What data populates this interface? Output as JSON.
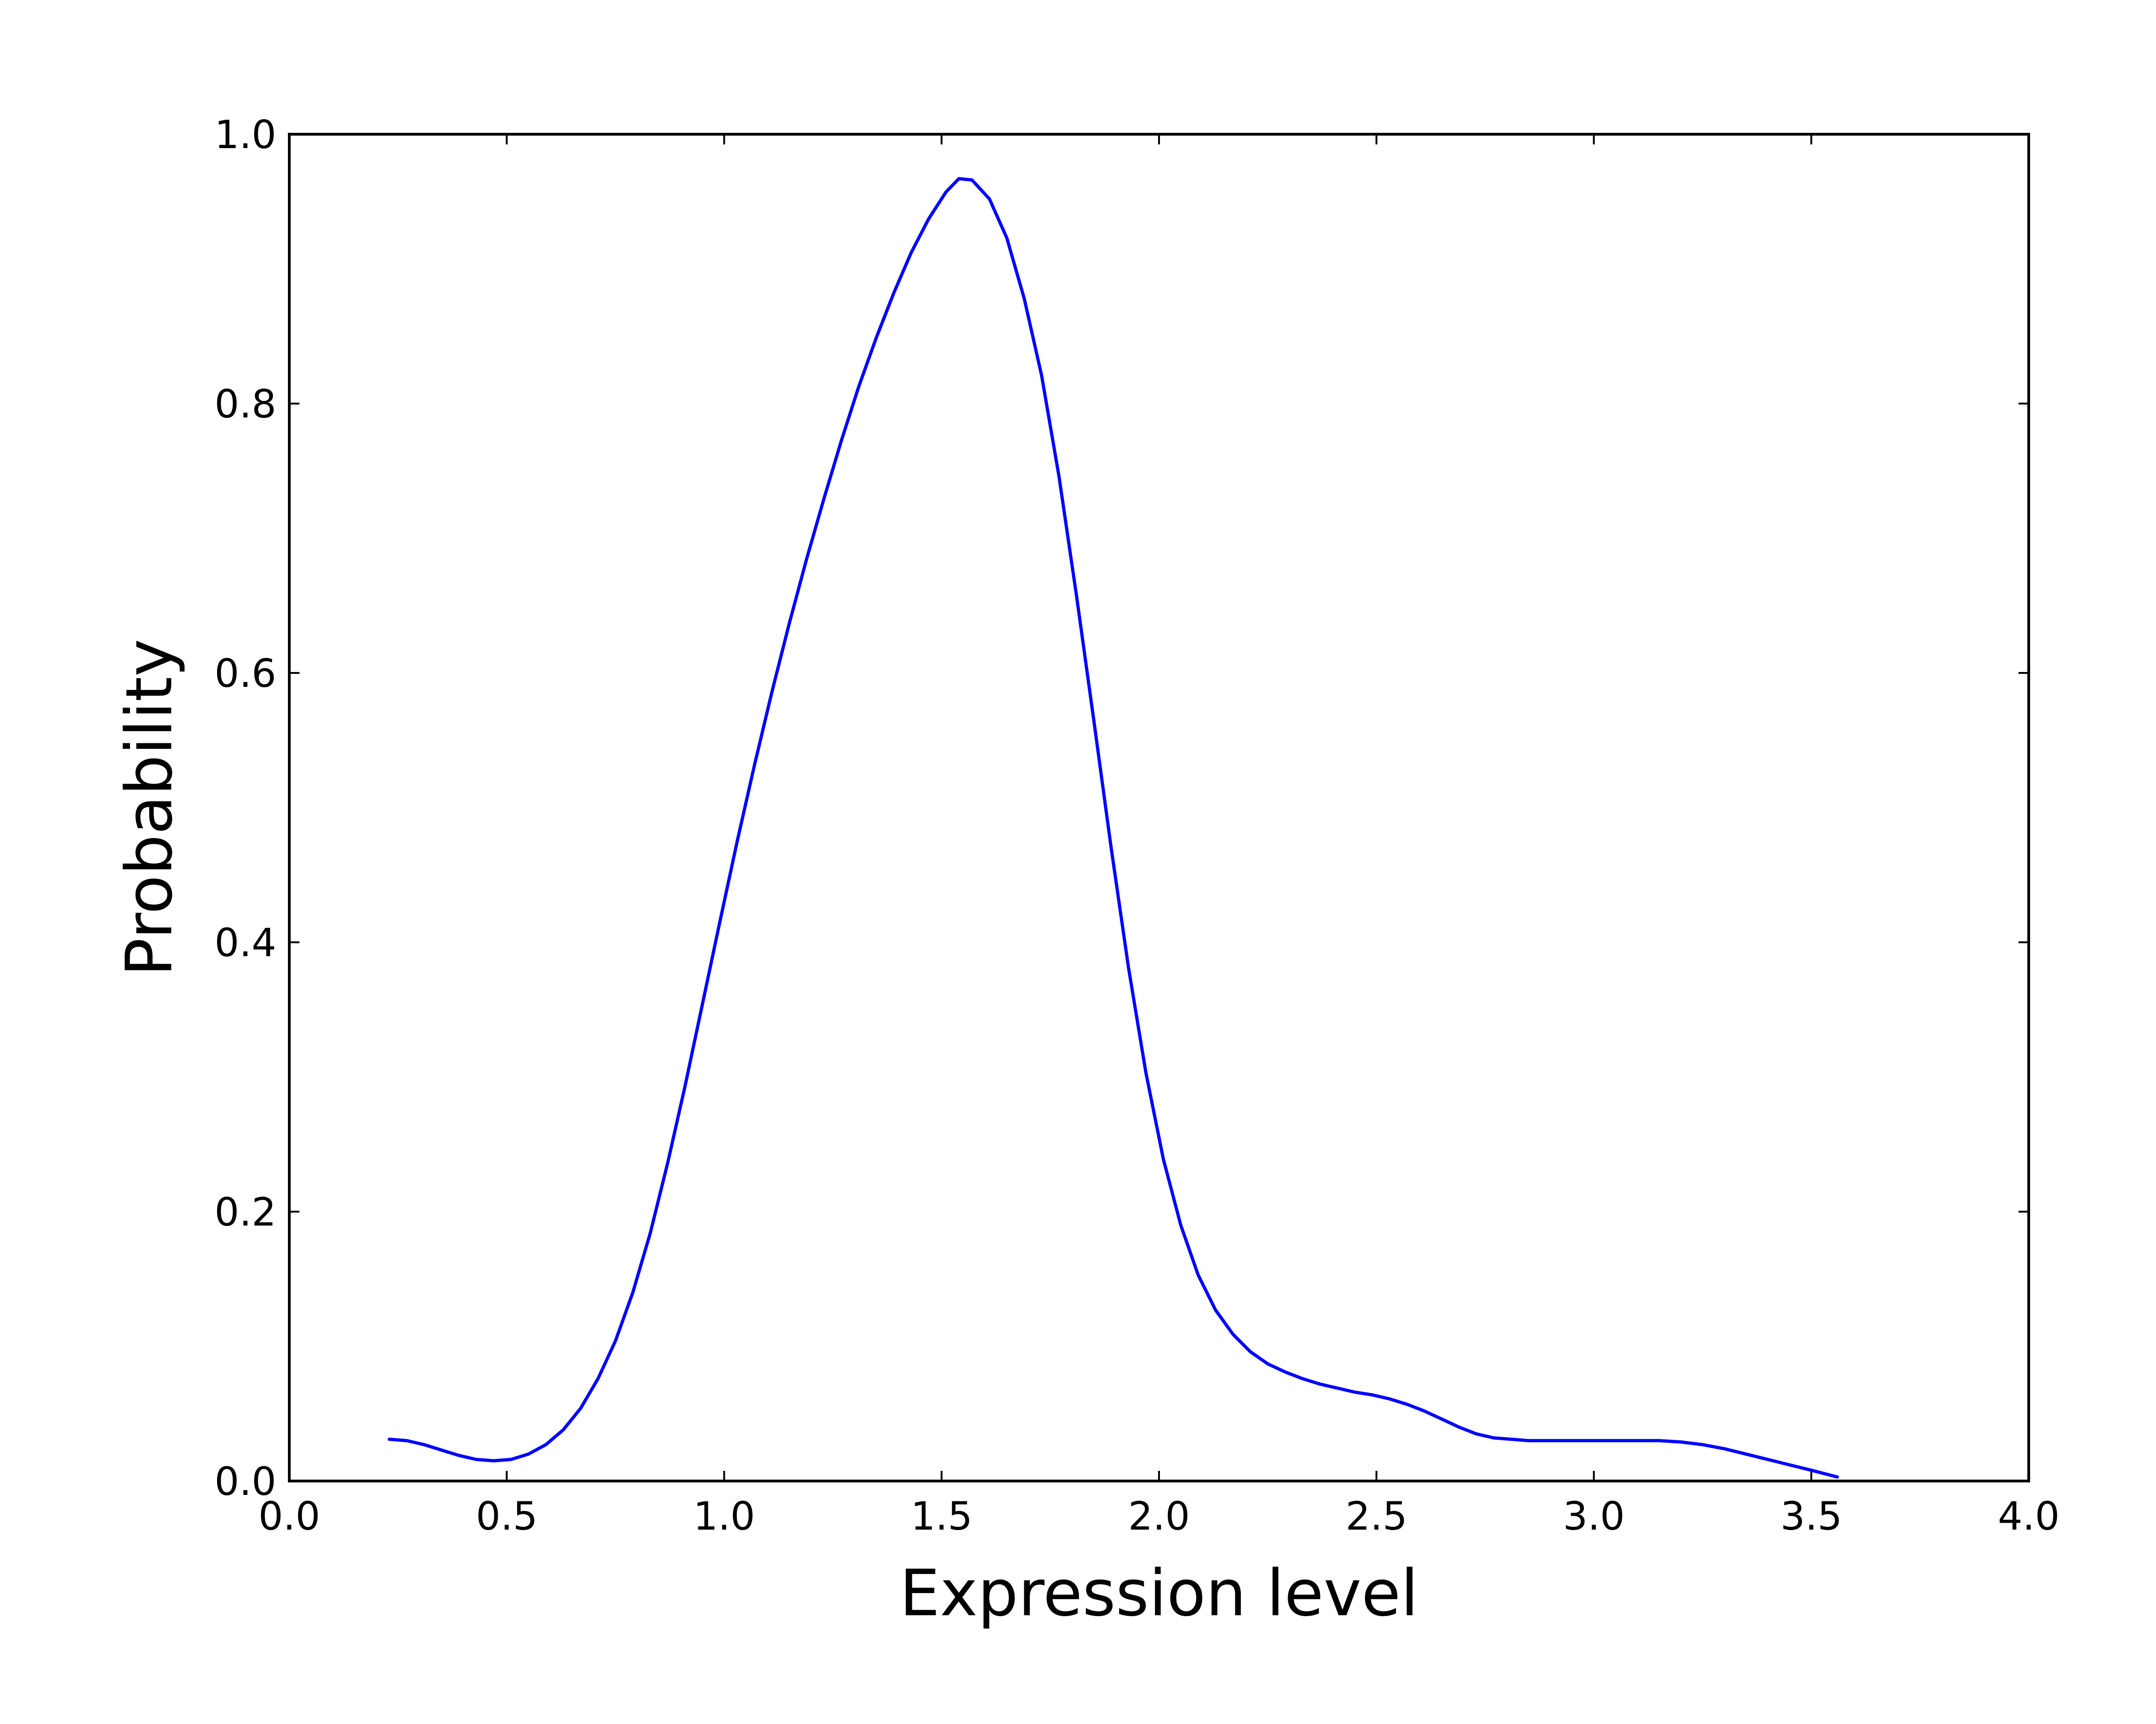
{
  "chart_data": {
    "type": "line",
    "title": "",
    "xlabel": "Expression level",
    "ylabel": "Probability",
    "xlim": [
      0.0,
      4.0
    ],
    "ylim": [
      0.0,
      1.0
    ],
    "xticks": [
      "0.0",
      "0.5",
      "1.0",
      "1.5",
      "2.0",
      "2.5",
      "3.0",
      "3.5",
      "4.0"
    ],
    "yticks": [
      "0.0",
      "0.2",
      "0.4",
      "0.6",
      "0.8",
      "1.0"
    ],
    "grid": false,
    "legend": "none",
    "line_color": "#0000ff",
    "series": [
      {
        "x": [
          0.23,
          0.27,
          0.31,
          0.35,
          0.39,
          0.43,
          0.47,
          0.51,
          0.55,
          0.59,
          0.63,
          0.67,
          0.71,
          0.75,
          0.79,
          0.83,
          0.87,
          0.91,
          0.95,
          0.99,
          1.03,
          1.07,
          1.11,
          1.15,
          1.19,
          1.23,
          1.27,
          1.31,
          1.35,
          1.39,
          1.43,
          1.47,
          1.51,
          1.54,
          1.57,
          1.61,
          1.65,
          1.69,
          1.73,
          1.77,
          1.81,
          1.85,
          1.89,
          1.93,
          1.97,
          2.01,
          2.05,
          2.09,
          2.13,
          2.17,
          2.21,
          2.25,
          2.29,
          2.33,
          2.37,
          2.41,
          2.45,
          2.49,
          2.53,
          2.57,
          2.61,
          2.65,
          2.69,
          2.73,
          2.77,
          2.81,
          2.85,
          2.9,
          2.95,
          3.0,
          3.05,
          3.1,
          3.15,
          3.2,
          3.25,
          3.3,
          3.35,
          3.4,
          3.45,
          3.5,
          3.56
        ],
        "y": [
          0.031,
          0.03,
          0.027,
          0.023,
          0.019,
          0.016,
          0.015,
          0.016,
          0.02,
          0.027,
          0.038,
          0.054,
          0.076,
          0.104,
          0.14,
          0.184,
          0.236,
          0.293,
          0.354,
          0.415,
          0.475,
          0.532,
          0.586,
          0.637,
          0.685,
          0.73,
          0.773,
          0.813,
          0.849,
          0.882,
          0.912,
          0.937,
          0.957,
          0.967,
          0.966,
          0.952,
          0.923,
          0.878,
          0.821,
          0.746,
          0.658,
          0.565,
          0.47,
          0.381,
          0.303,
          0.239,
          0.19,
          0.153,
          0.127,
          0.109,
          0.096,
          0.087,
          0.081,
          0.076,
          0.072,
          0.069,
          0.066,
          0.064,
          0.061,
          0.057,
          0.052,
          0.046,
          0.04,
          0.035,
          0.032,
          0.031,
          0.03,
          0.03,
          0.03,
          0.03,
          0.03,
          0.03,
          0.03,
          0.029,
          0.027,
          0.024,
          0.02,
          0.016,
          0.012,
          0.008,
          0.003
        ]
      }
    ]
  }
}
